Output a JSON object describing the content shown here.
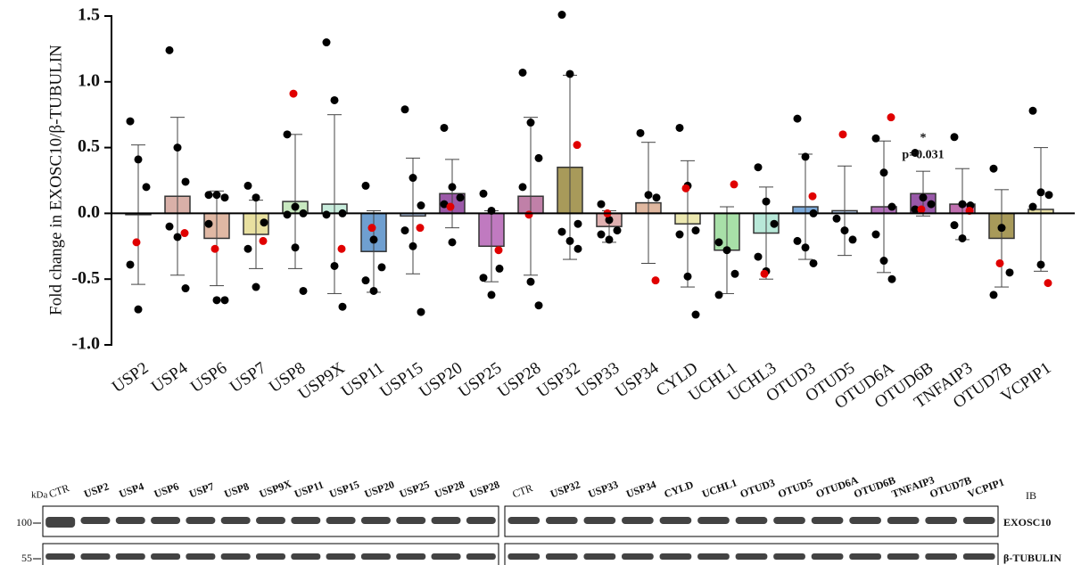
{
  "chart_data": {
    "type": "bar",
    "y_label": "Fold change in EXOSC10/β-TUBULIN",
    "categories": [
      "USP2",
      "USP4",
      "USP6",
      "USP7",
      "USP8",
      "USP9X",
      "USP11",
      "USP15",
      "USP20",
      "USP25",
      "USP28",
      "USP32",
      "USP33",
      "USP34",
      "CYLD",
      "UCHL1",
      "UCHL3",
      "OTUD3",
      "OTUD5",
      "OTUD6A",
      "OTUD6B",
      "TNFAIP3",
      "OTUD7B",
      "VCPIP1"
    ],
    "values": [
      -0.01,
      0.13,
      -0.19,
      -0.16,
      0.09,
      0.07,
      -0.29,
      -0.02,
      0.15,
      -0.25,
      0.13,
      0.35,
      -0.1,
      0.08,
      -0.08,
      -0.28,
      -0.15,
      0.05,
      0.02,
      0.05,
      0.15,
      0.07,
      -0.19,
      0.03
    ],
    "errors": [
      0.53,
      0.6,
      0.36,
      0.26,
      0.51,
      0.68,
      0.31,
      0.44,
      0.26,
      0.27,
      0.6,
      0.7,
      0.12,
      0.46,
      0.48,
      0.33,
      0.35,
      0.4,
      0.34,
      0.5,
      0.17,
      0.27,
      0.37,
      0.47
    ],
    "colors": [
      "#ffffff",
      "#d9b0a8",
      "#e0b8a4",
      "#e8e0a0",
      "#c8e8c0",
      "#c8ecdc",
      "#6f9fd0",
      "#b0c8e8",
      "#9b59a8",
      "#c07ac0",
      "#c080a8",
      "#a89a5a",
      "#e0b0b0",
      "#e0b8a0",
      "#ece8b0",
      "#a8e0a8",
      "#b8e8d8",
      "#7aa8d8",
      "#b8d0f0",
      "#b070b8",
      "#9858a8",
      "#c070b0",
      "#a89a5a",
      "#e8e0a8"
    ],
    "points": [
      [
        0.7,
        0.41,
        0.2,
        -0.39,
        -0.73
      ],
      [
        1.24,
        0.5,
        0.24,
        -0.1,
        -0.18,
        -0.57
      ],
      [
        0.14,
        0.14,
        0.12,
        -0.08,
        -0.66,
        -0.66
      ],
      [
        0.21,
        0.12,
        -0.07,
        -0.27,
        -0.56
      ],
      [
        0.6,
        0.05,
        0.0,
        -0.01,
        -0.26,
        -0.59
      ],
      [
        1.3,
        0.86,
        0.0,
        -0.01,
        -0.4,
        -0.71
      ],
      [
        0.21,
        -0.2,
        -0.41,
        -0.51,
        -0.59
      ],
      [
        0.79,
        0.27,
        0.06,
        -0.13,
        -0.25,
        -0.75
      ],
      [
        0.65,
        0.2,
        0.12,
        0.07,
        -0.22
      ],
      [
        0.15,
        0.02,
        -0.42,
        -0.49,
        -0.62
      ],
      [
        1.07,
        0.69,
        0.42,
        0.2,
        -0.52,
        -0.7
      ],
      [
        1.51,
        1.06,
        -0.08,
        -0.14,
        -0.21,
        -0.27
      ],
      [
        0.07,
        -0.05,
        -0.13,
        -0.16,
        -0.2
      ],
      [
        0.61,
        0.14,
        0.12
      ],
      [
        0.65,
        0.21,
        -0.13,
        -0.16,
        -0.48,
        -0.77
      ],
      [
        -0.22,
        -0.28,
        -0.46,
        -0.62
      ],
      [
        0.35,
        0.09,
        -0.08,
        -0.33,
        -0.44
      ],
      [
        0.72,
        0.43,
        0.0,
        -0.21,
        -0.26,
        -0.38
      ],
      [
        -0.04,
        -0.13,
        -0.2
      ],
      [
        0.57,
        0.31,
        0.05,
        -0.16,
        -0.36,
        -0.5
      ],
      [
        0.46,
        0.12,
        0.07,
        0.03
      ],
      [
        0.58,
        0.07,
        0.06,
        -0.09,
        -0.19
      ],
      [
        0.34,
        -0.11,
        -0.45,
        -0.62
      ],
      [
        0.78,
        0.16,
        0.14,
        0.05,
        -0.39
      ]
    ],
    "red_points": [
      -0.22,
      -0.15,
      -0.27,
      -0.21,
      0.91,
      -0.27,
      -0.11,
      -0.11,
      0.05,
      -0.28,
      -0.01,
      0.52,
      0.0,
      -0.51,
      0.19,
      0.22,
      -0.46,
      0.13,
      0.6,
      0.73,
      0.03,
      0.02,
      -0.38,
      -0.53
    ],
    "point_color": "#000000",
    "red_color": "#e00000",
    "ylim": [
      -1.0,
      1.5
    ],
    "yticks": [
      {
        "value": -1.0,
        "label": "-1.0"
      },
      -0.5,
      {
        "value": 0,
        "label": "0.0"
      },
      0.5,
      {
        "value": 1.0,
        "label": "1.0"
      },
      1.5
    ],
    "significance": {
      "category": "OTUD6B",
      "marker": "*",
      "label": "p=0.031"
    }
  },
  "blot": {
    "kda": "kDa",
    "ib": "IB",
    "left_lanes": [
      "CTR",
      "USP2",
      "USP4",
      "USP6",
      "USP7",
      "USP8",
      "USP9X",
      "USP11",
      "USP15",
      "USP20",
      "USP25",
      "USP28",
      "USP28"
    ],
    "right_lanes": [
      "CTR",
      "USP32",
      "USP33",
      "USP34",
      "CYLD",
      "UCHL1",
      "OTUD3",
      "OTUD5",
      "OTUD6A",
      "OTUD6B",
      "TNFAIP3",
      "OTUD7B",
      "VCPIP1"
    ],
    "rows": [
      {
        "size": "100",
        "label": "EXOSC10"
      },
      {
        "size": "55",
        "label": "β-TUBULIN"
      }
    ]
  }
}
